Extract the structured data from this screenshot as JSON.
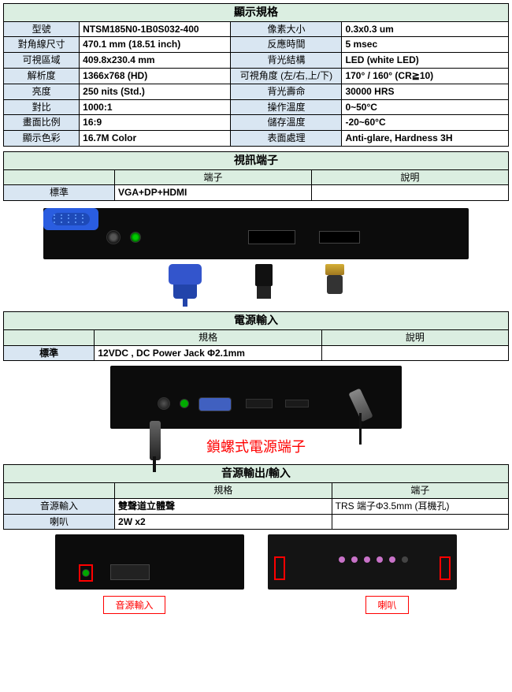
{
  "colors": {
    "header_bg": "#dbeee1",
    "label_bg": "#d9e6f2",
    "value_bg": "#ffffff",
    "border": "#000000",
    "red": "#ff0000",
    "panel_black": "#0c0c0c",
    "vga_blue": "#2a5de0"
  },
  "display_spec": {
    "title": "顯示規格",
    "rows": [
      {
        "l1": "型號",
        "v1": "NTSM185N0-1B0S032-400",
        "l2": "像素大小",
        "v2": "0.3x0.3 um"
      },
      {
        "l1": "對角線尺寸",
        "v1": "470.1 mm (18.51 inch)",
        "l2": "反應時間",
        "v2": "5 msec"
      },
      {
        "l1": "可視區域",
        "v1": "409.8x230.4 mm",
        "l2": "背光結構",
        "v2": "LED (white LED)"
      },
      {
        "l1": "解析度",
        "v1": "1366x768 (HD)",
        "l2": "可視角度 (左/右,上/下)",
        "v2": "170° / 160° (CR≧10)"
      },
      {
        "l1": "亮度",
        "v1": "250 nits (Std.)",
        "l2": "背光壽命",
        "v2": "30000 HRS"
      },
      {
        "l1": "對比",
        "v1": "1000:1",
        "l2": "操作溫度",
        "v2": "0~50°C"
      },
      {
        "l1": "畫面比例",
        "v1": "16:9",
        "l2": "儲存溫度",
        "v2": "-20~60°C"
      },
      {
        "l1": "顯示色彩",
        "v1": "16.7M Color",
        "l2": "表面處理",
        "v2": "Anti-glare, Hardness 3H"
      }
    ]
  },
  "video": {
    "title": "視訊端子",
    "col_port": "端子",
    "col_desc": "說明",
    "row_label": "標準",
    "row_value": "VGA+DP+HDMI"
  },
  "power": {
    "title": "電源輸入",
    "col_spec": "規格",
    "col_desc": "說明",
    "row_label": "標準",
    "row_value": "12VDC , DC Power Jack Φ2.1mm",
    "red_caption": "鎖螺式電源端子"
  },
  "audio": {
    "title": "音源輸出/輸入",
    "col_spec": "規格",
    "col_port": "端子",
    "row1_label": "音源輸入",
    "row1_spec": "雙聲道立體聲",
    "row1_port": "TRS 端子Φ3.5mm (耳機孔)",
    "row2_label": "喇叭",
    "row2_spec": "2W x2",
    "label_left": "音源輸入",
    "label_right": "喇叭"
  }
}
